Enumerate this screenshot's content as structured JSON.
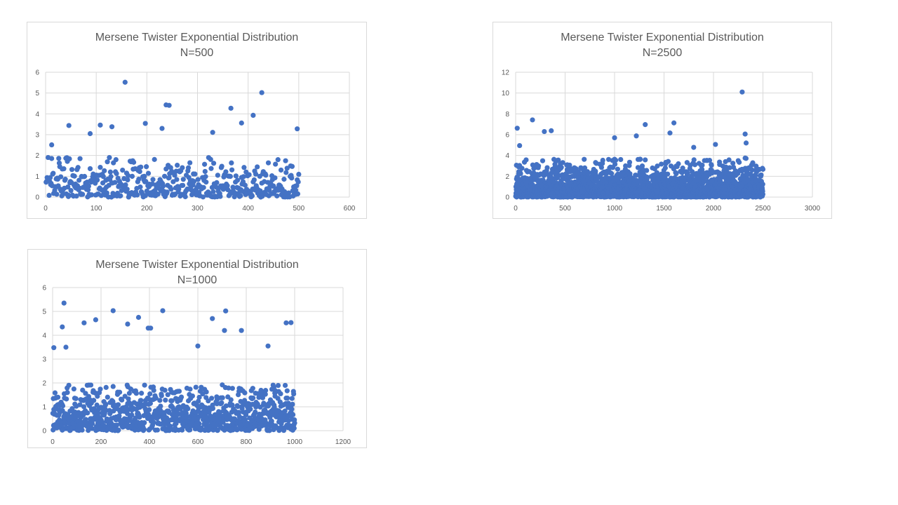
{
  "chart_data": [
    {
      "id": "n500",
      "type": "scatter",
      "title": "Mersene Twister Exponential Distribution",
      "subtitle": "N=500",
      "n": 500,
      "xlim": [
        0,
        600
      ],
      "ylim": [
        0,
        6
      ],
      "xticks": [
        0,
        100,
        200,
        300,
        400,
        500,
        600
      ],
      "yticks": [
        0,
        1,
        2,
        3,
        4,
        5,
        6
      ],
      "grid": true,
      "marker_color": "#4472C4",
      "seed": 11,
      "outliers": [
        [
          157,
          5.52
        ],
        [
          238,
          4.43
        ],
        [
          244,
          4.41
        ],
        [
          366,
          4.27
        ],
        [
          387,
          3.56
        ],
        [
          410,
          3.93
        ],
        [
          427,
          5.02
        ],
        [
          46,
          3.44
        ],
        [
          108,
          3.46
        ],
        [
          131,
          3.38
        ],
        [
          197,
          3.54
        ],
        [
          230,
          3.3
        ],
        [
          330,
          3.11
        ],
        [
          497,
          3.28
        ],
        [
          12,
          2.51
        ],
        [
          88,
          3.05
        ]
      ]
    },
    {
      "id": "n2500",
      "type": "scatter",
      "title": "Mersene Twister Exponential Distribution",
      "subtitle": "N=2500",
      "n": 2500,
      "xlim": [
        0,
        3000
      ],
      "ylim": [
        0,
        12
      ],
      "xticks": [
        0,
        500,
        1000,
        1500,
        2000,
        2500,
        3000
      ],
      "yticks": [
        0,
        2,
        4,
        6,
        8,
        10,
        12
      ],
      "grid": true,
      "marker_color": "#4472C4",
      "seed": 23,
      "outliers": [
        [
          2290,
          10.1
        ],
        [
          16,
          6.62
        ],
        [
          170,
          7.42
        ],
        [
          1310,
          6.97
        ],
        [
          1600,
          7.13
        ],
        [
          290,
          6.3
        ],
        [
          360,
          6.38
        ],
        [
          1560,
          6.16
        ],
        [
          2320,
          6.06
        ],
        [
          1220,
          5.88
        ],
        [
          2020,
          5.06
        ],
        [
          1000,
          5.7
        ],
        [
          40,
          4.95
        ],
        [
          1800,
          4.78
        ],
        [
          2330,
          5.2
        ]
      ]
    },
    {
      "id": "n1000",
      "type": "scatter",
      "title": "Mersene Twister Exponential Distribution",
      "subtitle": "N=1000",
      "n": 1000,
      "xlim": [
        0,
        1200
      ],
      "ylim": [
        0,
        6
      ],
      "xticks": [
        0,
        200,
        400,
        600,
        800,
        1000,
        1200
      ],
      "yticks": [
        0,
        1,
        2,
        3,
        4,
        5,
        6
      ],
      "grid": true,
      "marker_color": "#4472C4",
      "seed": 37,
      "outliers": [
        [
          47,
          5.35
        ],
        [
          250,
          5.03
        ],
        [
          455,
          5.03
        ],
        [
          715,
          5.02
        ],
        [
          40,
          4.35
        ],
        [
          130,
          4.52
        ],
        [
          178,
          4.65
        ],
        [
          310,
          4.47
        ],
        [
          355,
          4.75
        ],
        [
          395,
          4.3
        ],
        [
          405,
          4.3
        ],
        [
          660,
          4.7
        ],
        [
          710,
          4.2
        ],
        [
          780,
          4.2
        ],
        [
          965,
          4.52
        ],
        [
          985,
          4.53
        ],
        [
          5,
          3.48
        ],
        [
          55,
          3.5
        ],
        [
          600,
          3.55
        ],
        [
          890,
          3.55
        ]
      ]
    }
  ]
}
